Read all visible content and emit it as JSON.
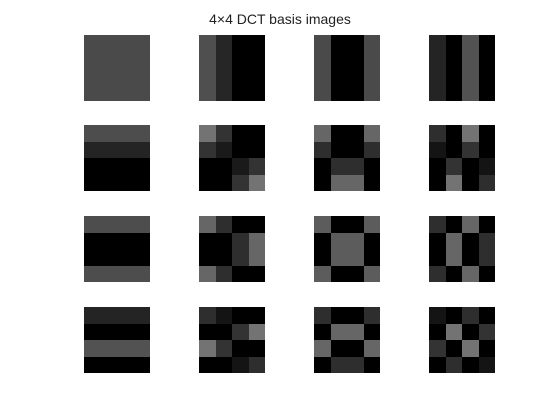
{
  "title": "4×4 DCT basis images",
  "grid": {
    "rows": 4,
    "cols": 4,
    "block_size": 4
  },
  "palette": {
    "background": "#ffffff",
    "title_text": "#222222"
  },
  "tiles": [
    {
      "u": 0,
      "v": 0,
      "levels": [
        [
          0.29,
          0.29,
          0.29,
          0.29
        ],
        [
          0.29,
          0.29,
          0.29,
          0.29
        ],
        [
          0.29,
          0.29,
          0.29,
          0.29
        ],
        [
          0.29,
          0.29,
          0.29,
          0.29
        ]
      ]
    },
    {
      "u": 0,
      "v": 1,
      "levels": [
        [
          0.31,
          0.15,
          0.0,
          0.0
        ],
        [
          0.31,
          0.15,
          0.0,
          0.0
        ],
        [
          0.31,
          0.15,
          0.0,
          0.0
        ],
        [
          0.31,
          0.15,
          0.0,
          0.0
        ]
      ]
    },
    {
      "u": 0,
      "v": 2,
      "levels": [
        [
          0.29,
          0.0,
          0.0,
          0.29
        ],
        [
          0.29,
          0.0,
          0.0,
          0.29
        ],
        [
          0.29,
          0.0,
          0.0,
          0.29
        ],
        [
          0.29,
          0.0,
          0.0,
          0.29
        ]
      ]
    },
    {
      "u": 0,
      "v": 3,
      "levels": [
        [
          0.14,
          0.0,
          0.32,
          0.0
        ],
        [
          0.14,
          0.0,
          0.32,
          0.0
        ],
        [
          0.14,
          0.0,
          0.32,
          0.0
        ],
        [
          0.14,
          0.0,
          0.32,
          0.0
        ]
      ]
    },
    {
      "u": 1,
      "v": 0,
      "levels": [
        [
          0.3,
          0.3,
          0.3,
          0.3
        ],
        [
          0.14,
          0.14,
          0.14,
          0.14
        ],
        [
          0.0,
          0.0,
          0.0,
          0.0
        ],
        [
          0.0,
          0.0,
          0.0,
          0.0
        ]
      ]
    },
    {
      "u": 1,
      "v": 1,
      "levels": [
        [
          0.45,
          0.2,
          0.0,
          0.0
        ],
        [
          0.2,
          0.1,
          0.0,
          0.0
        ],
        [
          0.0,
          0.0,
          0.1,
          0.2
        ],
        [
          0.0,
          0.0,
          0.2,
          0.45
        ]
      ]
    },
    {
      "u": 1,
      "v": 2,
      "levels": [
        [
          0.4,
          0.0,
          0.0,
          0.4
        ],
        [
          0.18,
          0.0,
          0.0,
          0.18
        ],
        [
          0.0,
          0.18,
          0.18,
          0.0
        ],
        [
          0.0,
          0.4,
          0.4,
          0.0
        ]
      ]
    },
    {
      "u": 1,
      "v": 3,
      "levels": [
        [
          0.18,
          0.0,
          0.45,
          0.0
        ],
        [
          0.08,
          0.0,
          0.2,
          0.0
        ],
        [
          0.0,
          0.2,
          0.0,
          0.08
        ],
        [
          0.0,
          0.45,
          0.0,
          0.18
        ]
      ]
    },
    {
      "u": 2,
      "v": 0,
      "levels": [
        [
          0.3,
          0.3,
          0.3,
          0.3
        ],
        [
          0.0,
          0.0,
          0.0,
          0.0
        ],
        [
          0.0,
          0.0,
          0.0,
          0.0
        ],
        [
          0.3,
          0.3,
          0.3,
          0.3
        ]
      ]
    },
    {
      "u": 2,
      "v": 1,
      "levels": [
        [
          0.4,
          0.18,
          0.0,
          0.0
        ],
        [
          0.0,
          0.0,
          0.18,
          0.4
        ],
        [
          0.0,
          0.0,
          0.18,
          0.4
        ],
        [
          0.4,
          0.18,
          0.0,
          0.0
        ]
      ]
    },
    {
      "u": 2,
      "v": 2,
      "levels": [
        [
          0.36,
          0.0,
          0.0,
          0.36
        ],
        [
          0.0,
          0.36,
          0.36,
          0.0
        ],
        [
          0.0,
          0.36,
          0.36,
          0.0
        ],
        [
          0.36,
          0.0,
          0.0,
          0.36
        ]
      ]
    },
    {
      "u": 2,
      "v": 3,
      "levels": [
        [
          0.18,
          0.0,
          0.4,
          0.0
        ],
        [
          0.0,
          0.4,
          0.0,
          0.18
        ],
        [
          0.0,
          0.4,
          0.0,
          0.18
        ],
        [
          0.18,
          0.0,
          0.4,
          0.0
        ]
      ]
    },
    {
      "u": 3,
      "v": 0,
      "levels": [
        [
          0.14,
          0.14,
          0.14,
          0.14
        ],
        [
          0.0,
          0.0,
          0.0,
          0.0
        ],
        [
          0.32,
          0.32,
          0.32,
          0.32
        ],
        [
          0.0,
          0.0,
          0.0,
          0.0
        ]
      ]
    },
    {
      "u": 3,
      "v": 1,
      "levels": [
        [
          0.18,
          0.08,
          0.0,
          0.0
        ],
        [
          0.0,
          0.0,
          0.2,
          0.45
        ],
        [
          0.45,
          0.2,
          0.0,
          0.0
        ],
        [
          0.0,
          0.0,
          0.08,
          0.18
        ]
      ]
    },
    {
      "u": 3,
      "v": 2,
      "levels": [
        [
          0.18,
          0.0,
          0.0,
          0.18
        ],
        [
          0.0,
          0.4,
          0.4,
          0.0
        ],
        [
          0.4,
          0.0,
          0.0,
          0.4
        ],
        [
          0.0,
          0.18,
          0.18,
          0.0
        ]
      ]
    },
    {
      "u": 3,
      "v": 3,
      "levels": [
        [
          0.08,
          0.0,
          0.18,
          0.0
        ],
        [
          0.0,
          0.45,
          0.0,
          0.2
        ],
        [
          0.2,
          0.0,
          0.45,
          0.0
        ],
        [
          0.0,
          0.18,
          0.0,
          0.08
        ]
      ]
    }
  ]
}
